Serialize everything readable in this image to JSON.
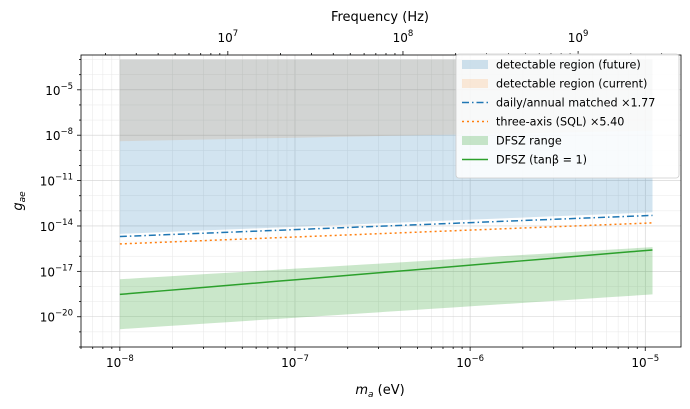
{
  "chart_data": {
    "type": "line",
    "xlabel_base": "m",
    "xlabel_sub": "a",
    "xlabel_suffix": " (eV)",
    "ylabel_base": "g",
    "ylabel_sub": "ae",
    "x_top_label": "Frequency (Hz)",
    "xscale": "log",
    "yscale": "log",
    "xlim": [
      6e-09,
      1.6e-05
    ],
    "ylim": [
      1e-22,
      0.002
    ],
    "x_ticks": [
      {
        "exp": "−8",
        "value": 1e-08
      },
      {
        "exp": "−7",
        "value": 1e-07
      },
      {
        "exp": "−6",
        "value": 1e-06
      },
      {
        "exp": "−5",
        "value": 1e-05
      }
    ],
    "y_ticks": [
      {
        "exp": "−20",
        "value": 1e-20
      },
      {
        "exp": "−17",
        "value": 1e-17
      },
      {
        "exp": "−14",
        "value": 1e-14
      },
      {
        "exp": "−11",
        "value": 1e-11
      },
      {
        "exp": "−8",
        "value": 1e-08
      },
      {
        "exp": "−5",
        "value": 1e-05
      }
    ],
    "top_ticks": [
      {
        "exp": "7",
        "freq_hz": 10000000.0
      },
      {
        "exp": "8",
        "freq_hz": 100000000.0
      },
      {
        "exp": "9",
        "freq_hz": 1000000000.0
      }
    ],
    "ma_per_hz": 4.1357e-15,
    "grid": true,
    "legend_position": "top-right",
    "series": [
      {
        "name": "detectable region (current)",
        "kind": "band",
        "color": "#ff7f0e",
        "opacity": 0.15,
        "x": [
          1e-08,
          1.1e-05
        ],
        "lower": [
          4e-09,
          2e-08
        ],
        "upper": [
          0.001,
          0.001
        ]
      },
      {
        "name": "detectable region (future)",
        "kind": "band",
        "color": "#1f77b4",
        "opacity": 0.2,
        "x": [
          1e-08,
          1.1e-05
        ],
        "lower": [
          3e-15,
          8e-14
        ],
        "upper": [
          0.001,
          0.001
        ]
      },
      {
        "name": "DFSZ range",
        "kind": "band",
        "color": "#2ca02c",
        "opacity": 0.25,
        "x": [
          1e-08,
          1.1e-05
        ],
        "lower": [
          1.5e-21,
          3e-19
        ],
        "upper": [
          3e-18,
          4e-16
        ]
      },
      {
        "name": "daily/annual matched ×1.77",
        "kind": "line",
        "color": "#1f77b4",
        "dash": "dashdot",
        "x": [
          1e-08,
          1.1e-05
        ],
        "y": [
          2e-15,
          5e-14
        ]
      },
      {
        "name": "three-axis (SQL) ×5.40",
        "kind": "line",
        "color": "#ff7f0e",
        "dash": "dotted",
        "x": [
          1e-08,
          1.1e-05
        ],
        "y": [
          6.5e-16,
          1.6e-14
        ]
      },
      {
        "name": "DFSZ (tanβ = 1)",
        "kind": "line",
        "color": "#2ca02c",
        "dash": "solid",
        "x": [
          1e-08,
          1.1e-05
        ],
        "y": [
          3e-19,
          2.6e-16
        ]
      }
    ],
    "legend_order": [
      "detectable region (future)",
      "detectable region (current)",
      "daily/annual matched ×1.77",
      "three-axis (SQL) ×5.40",
      "DFSZ range",
      "DFSZ (tanβ = 1)"
    ]
  }
}
